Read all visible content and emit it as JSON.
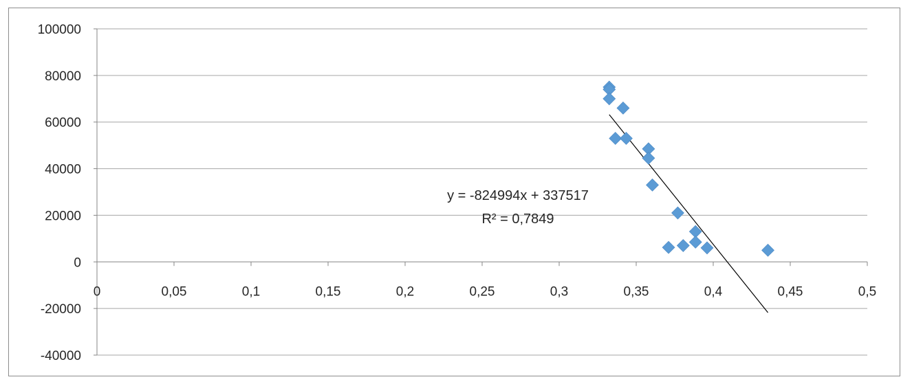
{
  "chart_data": {
    "type": "scatter",
    "title": "",
    "xlabel": "",
    "ylabel": "",
    "xlim": [
      0,
      0.5
    ],
    "ylim": [
      -40000,
      100000
    ],
    "x_ticks": [
      "0",
      "0,05",
      "0,1",
      "0,15",
      "0,2",
      "0,25",
      "0,3",
      "0,35",
      "0,4",
      "0,45",
      "0,5"
    ],
    "y_ticks": [
      "100000",
      "80000",
      "60000",
      "40000",
      "20000",
      "0",
      "-20000",
      "-40000"
    ],
    "grid": "horizontal",
    "legend": "none",
    "marker": "diamond",
    "series": [
      {
        "color": "#5b9bd5",
        "points": [
          {
            "x": 0.3325,
            "y": 75000
          },
          {
            "x": 0.3325,
            "y": 74000
          },
          {
            "x": 0.3325,
            "y": 70000
          },
          {
            "x": 0.3415,
            "y": 66000
          },
          {
            "x": 0.3365,
            "y": 53000
          },
          {
            "x": 0.3435,
            "y": 53000
          },
          {
            "x": 0.358,
            "y": 48500
          },
          {
            "x": 0.358,
            "y": 44500
          },
          {
            "x": 0.3605,
            "y": 33000
          },
          {
            "x": 0.377,
            "y": 21000
          },
          {
            "x": 0.3885,
            "y": 13000
          },
          {
            "x": 0.3885,
            "y": 8500
          },
          {
            "x": 0.371,
            "y": 6200
          },
          {
            "x": 0.3805,
            "y": 7000
          },
          {
            "x": 0.396,
            "y": 6000
          },
          {
            "x": 0.4355,
            "y": 5000
          }
        ]
      }
    ],
    "trendline": {
      "type": "linear",
      "slope": -824994,
      "intercept": 337517,
      "x_range": [
        0.3325,
        0.4355
      ],
      "color": "#000000",
      "equation_label": "y = -824994x + 337517",
      "r2_label": "R² = 0,7849"
    }
  }
}
